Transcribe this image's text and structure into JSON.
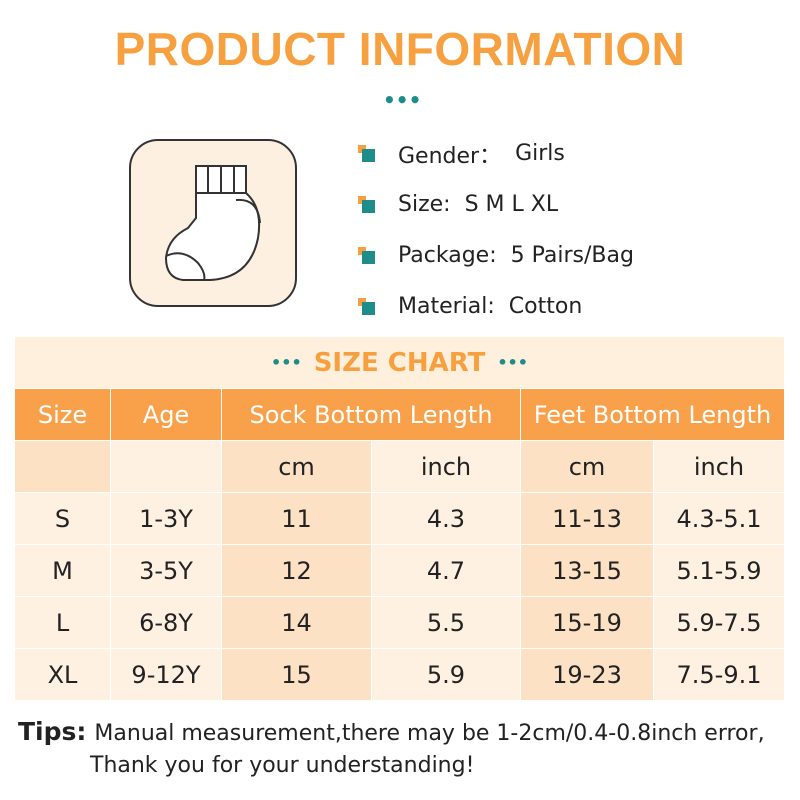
{
  "header": {
    "title": "PRODUCT INFORMATION"
  },
  "info": [
    {
      "label": "Gender：",
      "value": "Girls"
    },
    {
      "label": "Size:",
      "value": "S M L XL"
    },
    {
      "label": "Package:",
      "value": "5 Pairs/Bag"
    },
    {
      "label": "Material:",
      "value": "Cotton"
    }
  ],
  "size_chart": {
    "title": "SIZE CHART",
    "headers": [
      "Size",
      "Age",
      "Sock Bottom Length",
      "Feet Bottom Length"
    ],
    "units": [
      "cm",
      "inch",
      "cm",
      "inch"
    ],
    "rows": [
      [
        "S",
        "1-3Y",
        "11",
        "4.3",
        "11-13",
        "4.3-5.1"
      ],
      [
        "M",
        "3-5Y",
        "12",
        "4.7",
        "13-15",
        "5.1-5.9"
      ],
      [
        "L",
        "6-8Y",
        "14",
        "5.5",
        "15-19",
        "5.9-7.5"
      ],
      [
        "XL",
        "9-12Y",
        "15",
        "5.9",
        "19-23",
        "7.5-9.1"
      ]
    ]
  },
  "tips": {
    "label": "Tips:",
    "lines": [
      "Manual measurement,there may be 1-2cm/0.4-0.8inch error,",
      "Thank you for your understanding!"
    ]
  }
}
